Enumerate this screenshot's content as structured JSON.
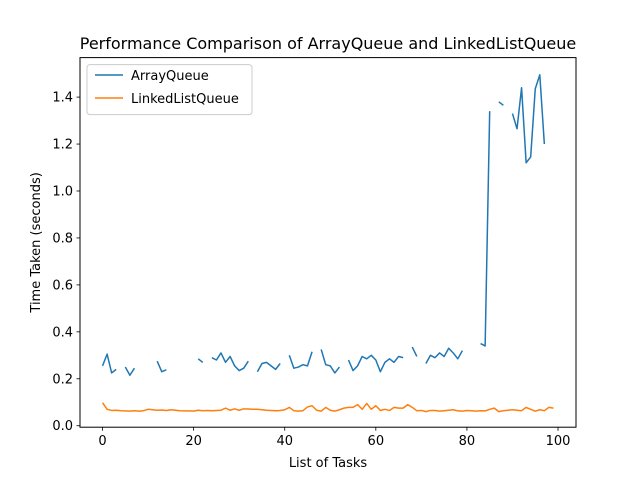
{
  "chart_data": {
    "type": "line",
    "title": "Performance Comparison of ArrayQueue and LinkedListQueue",
    "xlabel": "List of Tasks",
    "ylabel": "Time Taken (seconds)",
    "xlim": [
      -4.95,
      103.95
    ],
    "ylim": [
      -0.0063,
      1.5683
    ],
    "x_ticks": [
      0,
      20,
      40,
      60,
      80,
      100
    ],
    "x_tick_labels": [
      "0",
      "20",
      "40",
      "60",
      "80",
      "100"
    ],
    "y_ticks": [
      0.0,
      0.2,
      0.4,
      0.6,
      0.8,
      1.0,
      1.2,
      1.4
    ],
    "y_tick_labels": [
      "0.0",
      "0.2",
      "0.4",
      "0.6",
      "0.8",
      "1.0",
      "1.2",
      "1.4"
    ],
    "grid": false,
    "legend_position": "top-left",
    "x": [
      0,
      1,
      2,
      3,
      4,
      5,
      6,
      7,
      8,
      9,
      10,
      11,
      12,
      13,
      14,
      15,
      16,
      17,
      18,
      19,
      20,
      21,
      22,
      23,
      24,
      25,
      26,
      27,
      28,
      29,
      30,
      31,
      32,
      33,
      34,
      35,
      36,
      37,
      38,
      39,
      40,
      41,
      42,
      43,
      44,
      45,
      46,
      47,
      48,
      49,
      50,
      51,
      52,
      53,
      54,
      55,
      56,
      57,
      58,
      59,
      60,
      61,
      62,
      63,
      64,
      65,
      66,
      67,
      68,
      69,
      70,
      71,
      72,
      73,
      74,
      75,
      76,
      77,
      78,
      79,
      80,
      81,
      82,
      83,
      84,
      85,
      86,
      87,
      88,
      89,
      90,
      91,
      92,
      93,
      94,
      95,
      96,
      97,
      98,
      99
    ],
    "series": [
      {
        "name": "ArrayQueue",
        "color": "#1f77b4",
        "values": [
          0.255,
          0.305,
          0.225,
          0.24,
          null,
          0.25,
          0.215,
          0.245,
          null,
          null,
          null,
          null,
          0.275,
          0.23,
          0.238,
          null,
          null,
          null,
          null,
          null,
          null,
          0.285,
          0.27,
          null,
          0.29,
          0.28,
          0.31,
          0.27,
          0.295,
          0.255,
          0.235,
          0.245,
          0.275,
          null,
          0.23,
          0.265,
          0.27,
          0.255,
          0.24,
          0.265,
          null,
          0.3,
          0.245,
          0.25,
          0.26,
          0.255,
          0.315,
          null,
          0.325,
          0.26,
          0.255,
          0.225,
          0.25,
          null,
          0.28,
          0.235,
          0.255,
          0.295,
          0.285,
          0.3,
          0.28,
          0.23,
          0.27,
          0.285,
          0.27,
          0.295,
          0.29,
          null,
          0.335,
          0.295,
          null,
          0.265,
          0.3,
          0.29,
          0.31,
          0.295,
          0.33,
          0.31,
          0.285,
          0.32,
          null,
          null,
          null,
          0.35,
          0.34,
          1.34,
          null,
          1.38,
          1.365,
          null,
          1.33,
          1.265,
          1.44,
          1.12,
          1.145,
          1.435,
          1.495,
          1.2,
          null,
          null
        ]
      },
      {
        "name": "LinkedListQueue",
        "color": "#ff7f0e",
        "values": [
          0.098,
          0.07,
          0.065,
          0.066,
          0.064,
          0.063,
          0.062,
          0.064,
          0.062,
          0.064,
          0.07,
          0.068,
          0.066,
          0.067,
          0.065,
          0.068,
          0.066,
          0.064,
          0.063,
          0.063,
          0.062,
          0.066,
          0.064,
          0.065,
          0.064,
          0.065,
          0.066,
          0.075,
          0.066,
          0.072,
          0.066,
          0.072,
          0.071,
          0.07,
          0.07,
          0.068,
          0.066,
          0.065,
          0.064,
          0.065,
          0.068,
          0.078,
          0.064,
          0.062,
          0.064,
          0.08,
          0.085,
          0.066,
          0.062,
          0.078,
          0.066,
          0.062,
          0.068,
          0.075,
          0.078,
          0.078,
          0.09,
          0.07,
          0.095,
          0.07,
          0.085,
          0.065,
          0.07,
          0.065,
          0.078,
          0.075,
          0.075,
          0.09,
          0.078,
          0.064,
          0.065,
          0.06,
          0.065,
          0.065,
          0.062,
          0.064,
          0.066,
          0.068,
          0.063,
          0.062,
          0.065,
          0.064,
          0.062,
          0.064,
          0.063,
          0.07,
          0.075,
          0.06,
          0.064,
          0.066,
          0.068,
          0.066,
          0.064,
          0.078,
          0.07,
          0.062,
          0.068,
          0.064,
          0.078,
          0.075
        ]
      }
    ]
  }
}
